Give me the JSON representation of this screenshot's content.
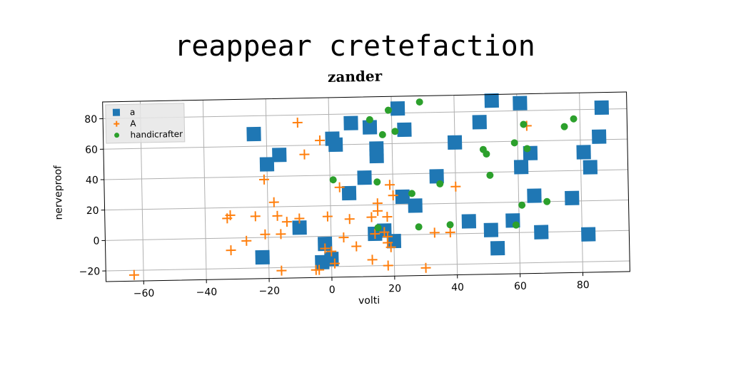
{
  "figure": {
    "suptitle": "reappear cretefaction"
  },
  "chart_data": {
    "type": "scatter",
    "title": "zander",
    "xlabel": "volti",
    "ylabel": "nerveproof",
    "xlim": [
      -72,
      95
    ],
    "ylim": [
      -27,
      91
    ],
    "xticks": [
      -60,
      -40,
      -20,
      0,
      20,
      40,
      60,
      80
    ],
    "yticks": [
      -20,
      0,
      20,
      40,
      60,
      80
    ],
    "grid": true,
    "legend_position": "upper-left",
    "series": [
      {
        "name": "a",
        "marker": "square",
        "color": "#1f77b4",
        "points": [
          [
            -24,
            68
          ],
          [
            -20,
            48
          ],
          [
            -16,
            54
          ],
          [
            -10,
            6
          ],
          [
            -22,
            -13
          ],
          [
            -2,
            -5
          ],
          [
            -3,
            -17
          ],
          [
            0,
            -15
          ],
          [
            1,
            64
          ],
          [
            2,
            60
          ],
          [
            7,
            74
          ],
          [
            6,
            28
          ],
          [
            11,
            38
          ],
          [
            13,
            71
          ],
          [
            15,
            57
          ],
          [
            15,
            52
          ],
          [
            14,
            1
          ],
          [
            17,
            3
          ],
          [
            20,
            -4
          ],
          [
            22,
            83
          ],
          [
            23,
            25
          ],
          [
            24,
            69
          ],
          [
            27,
            19
          ],
          [
            34,
            38
          ],
          [
            40,
            60
          ],
          [
            44,
            8
          ],
          [
            48,
            73
          ],
          [
            51,
            2
          ],
          [
            52,
            87
          ],
          [
            53,
            -10
          ],
          [
            58,
            8
          ],
          [
            61,
            85
          ],
          [
            61,
            43
          ],
          [
            64,
            52
          ],
          [
            65,
            24
          ],
          [
            67,
            0
          ],
          [
            77,
            22
          ],
          [
            81,
            52
          ],
          [
            82,
            -2
          ],
          [
            83,
            42
          ],
          [
            86,
            62
          ],
          [
            87,
            81
          ]
        ]
      },
      {
        "name": "A",
        "marker": "plus",
        "color": "#ff7f0e",
        "points": [
          [
            -63,
            -23
          ],
          [
            -33,
            13
          ],
          [
            -32,
            15
          ],
          [
            -32,
            -8
          ],
          [
            -27,
            -2
          ],
          [
            -24,
            14
          ],
          [
            -21,
            38
          ],
          [
            -21,
            2
          ],
          [
            -18,
            23
          ],
          [
            -17,
            14
          ],
          [
            -16,
            2
          ],
          [
            -16,
            -22
          ],
          [
            -14,
            10
          ],
          [
            -10,
            12
          ],
          [
            -10,
            75
          ],
          [
            -8,
            54
          ],
          [
            -5,
            -22
          ],
          [
            -4,
            -22
          ],
          [
            -3,
            63
          ],
          [
            -2,
            -8
          ],
          [
            -1,
            13
          ],
          [
            0,
            -10
          ],
          [
            1,
            -18
          ],
          [
            3,
            32
          ],
          [
            4,
            -1
          ],
          [
            6,
            11
          ],
          [
            8,
            -7
          ],
          [
            13,
            12
          ],
          [
            13,
            -16
          ],
          [
            14,
            1
          ],
          [
            15,
            21
          ],
          [
            15,
            16
          ],
          [
            17,
            2
          ],
          [
            18,
            12
          ],
          [
            18,
            -1
          ],
          [
            18,
            -5
          ],
          [
            18,
            -20
          ],
          [
            19,
            33
          ],
          [
            19,
            -8
          ],
          [
            20,
            26
          ],
          [
            30,
            -22
          ],
          [
            33,
            1
          ],
          [
            38,
            1
          ],
          [
            40,
            31
          ],
          [
            63,
            70
          ]
        ]
      },
      {
        "name": "handicrafter",
        "marker": "circle",
        "color": "#2ca02c",
        "points": [
          [
            1,
            37
          ],
          [
            13,
            76
          ],
          [
            15,
            35
          ],
          [
            15,
            5
          ],
          [
            17,
            66
          ],
          [
            19,
            82
          ],
          [
            21,
            68
          ],
          [
            26,
            27
          ],
          [
            28,
            5
          ],
          [
            29,
            87
          ],
          [
            35,
            33
          ],
          [
            38,
            6
          ],
          [
            49,
            55
          ],
          [
            50,
            52
          ],
          [
            51,
            38
          ],
          [
            59,
            59
          ],
          [
            59,
            5
          ],
          [
            61,
            18
          ],
          [
            62,
            71
          ],
          [
            63,
            55
          ],
          [
            69,
            20
          ],
          [
            75,
            69
          ],
          [
            78,
            74
          ]
        ]
      }
    ]
  }
}
